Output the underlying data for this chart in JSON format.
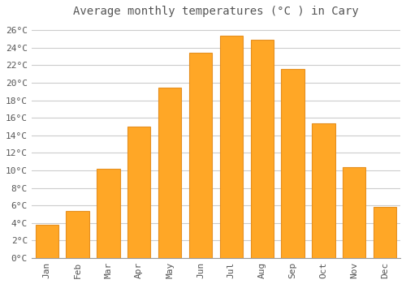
{
  "title": "Average monthly temperatures (°C ) in Cary",
  "months": [
    "Jan",
    "Feb",
    "Mar",
    "Apr",
    "May",
    "Jun",
    "Jul",
    "Aug",
    "Sep",
    "Oct",
    "Nov",
    "Dec"
  ],
  "values": [
    3.8,
    5.4,
    10.2,
    15.0,
    19.4,
    23.4,
    25.4,
    24.9,
    21.6,
    15.4,
    10.4,
    5.8
  ],
  "bar_color": "#FFA726",
  "bar_edge_color": "#E69020",
  "background_color": "#FFFFFF",
  "grid_color": "#CCCCCC",
  "text_color": "#555555",
  "ylim": [
    0,
    27
  ],
  "ytick_step": 2,
  "title_fontsize": 10,
  "tick_fontsize": 8,
  "font_family": "monospace"
}
